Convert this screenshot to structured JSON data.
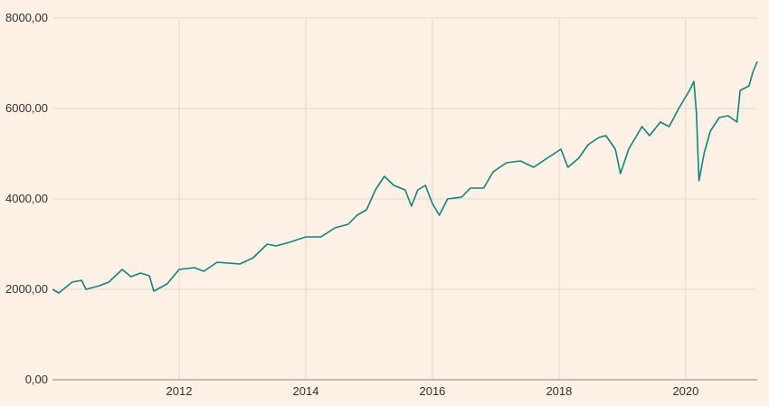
{
  "chart_data": {
    "type": "line",
    "title": "",
    "xlabel": "",
    "ylabel": "",
    "xlim": [
      2010.0,
      2021.13
    ],
    "ylim": [
      0,
      8000
    ],
    "grid": true,
    "legend": "none",
    "colors": {
      "background": "#fdf1e5",
      "line": "#0d8580",
      "grid": "#e6d6c8",
      "axis": "#8a8580"
    },
    "x_ticks": [
      2012,
      2014,
      2016,
      2018,
      2020
    ],
    "x_tick_labels": [
      "2012",
      "2014",
      "2016",
      "2018",
      "2020"
    ],
    "y_ticks": [
      0,
      2000,
      4000,
      6000,
      8000
    ],
    "y_tick_labels": [
      "0,00",
      "2000,00",
      "4000,00",
      "6000,00",
      "8000,00"
    ],
    "series": [
      {
        "x": [
          2010.0,
          2010.1,
          2010.31,
          2010.46,
          2010.53,
          2010.74,
          2010.89,
          2011.1,
          2011.24,
          2011.39,
          2011.53,
          2011.6,
          2011.81,
          2012.0,
          2012.24,
          2012.39,
          2012.6,
          2012.96,
          2013.17,
          2013.39,
          2013.53,
          2013.74,
          2014.0,
          2014.24,
          2014.46,
          2014.67,
          2014.81,
          2014.96,
          2015.1,
          2015.24,
          2015.39,
          2015.57,
          2015.67,
          2015.77,
          2015.89,
          2016.0,
          2016.11,
          2016.24,
          2016.46,
          2016.6,
          2016.81,
          2016.96,
          2017.17,
          2017.39,
          2017.6,
          2017.81,
          2018.03,
          2018.14,
          2018.31,
          2018.46,
          2018.63,
          2018.74,
          2018.89,
          2018.97,
          2019.1,
          2019.31,
          2019.43,
          2019.6,
          2019.74,
          2019.89,
          2020.06,
          2020.13,
          2020.17,
          2020.21,
          2020.29,
          2020.39,
          2020.53,
          2020.67,
          2020.81,
          2020.86,
          2021.0,
          2021.06,
          2021.13
        ],
        "values": [
          2000,
          1920,
          2160,
          2200,
          2000,
          2080,
          2160,
          2440,
          2280,
          2360,
          2300,
          1960,
          2120,
          2440,
          2480,
          2400,
          2600,
          2560,
          2700,
          3000,
          2960,
          3040,
          3160,
          3160,
          3360,
          3440,
          3640,
          3760,
          4200,
          4500,
          4300,
          4200,
          3840,
          4200,
          4300,
          3900,
          3640,
          4000,
          4040,
          4240,
          4240,
          4600,
          4800,
          4840,
          4700,
          4900,
          5100,
          4700,
          4900,
          5200,
          5360,
          5400,
          5100,
          4560,
          5100,
          5600,
          5400,
          5700,
          5600,
          6000,
          6400,
          6600,
          5900,
          4400,
          5000,
          5500,
          5800,
          5840,
          5700,
          6400,
          6500,
          6800,
          7040
        ]
      }
    ]
  }
}
